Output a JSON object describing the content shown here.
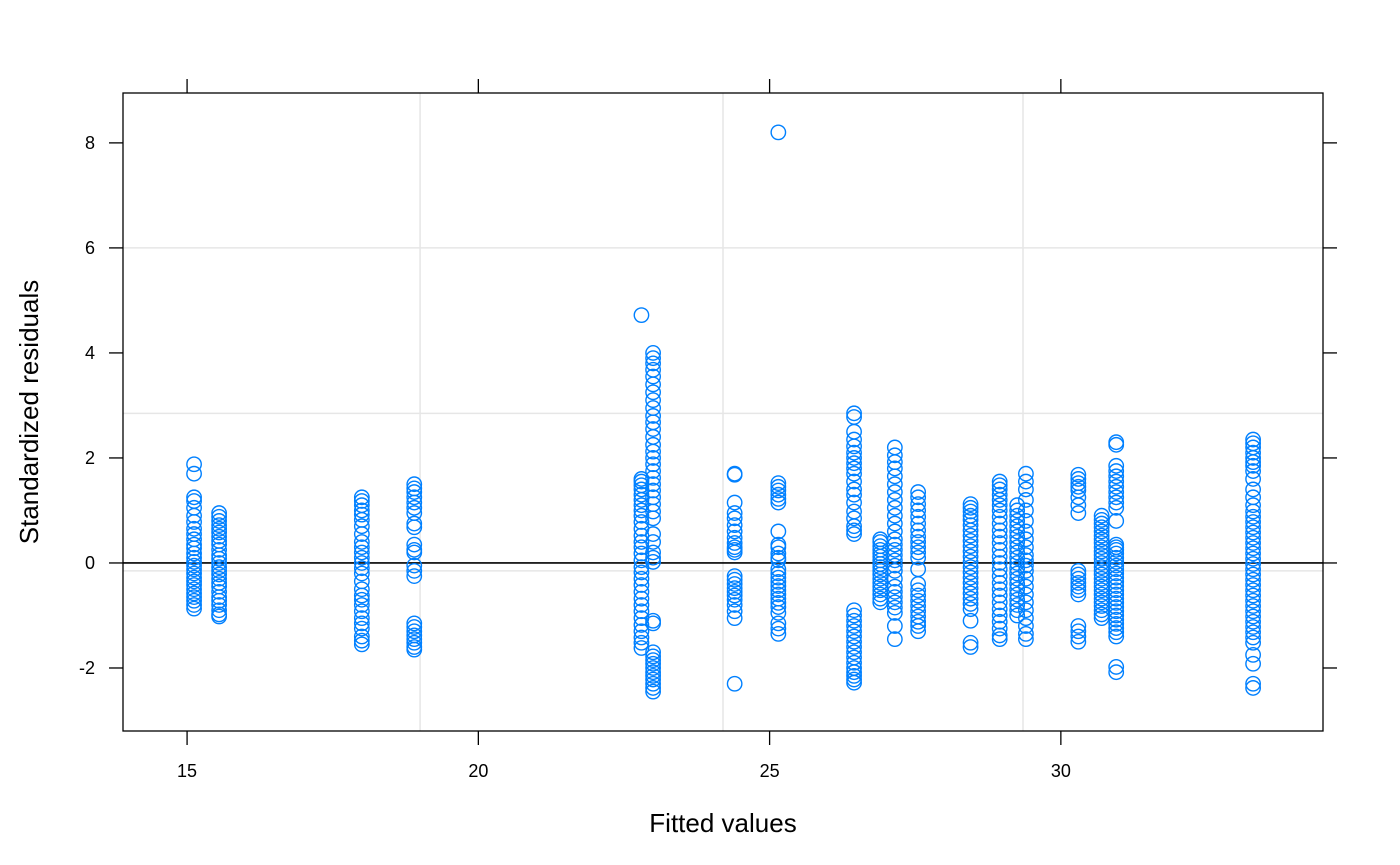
{
  "chart_data": {
    "type": "scatter",
    "title": "",
    "xlabel": "Fitted values",
    "ylabel": "Standardized residuals",
    "xlim": [
      13.9,
      34.5
    ],
    "ylim": [
      -3.2,
      8.95
    ],
    "x_ticks": [
      15,
      20,
      25,
      30
    ],
    "x_tick_labels": [
      "15",
      "20",
      "25",
      "30"
    ],
    "y_ticks": [
      -2,
      0,
      2,
      4,
      6,
      8
    ],
    "y_tick_labels": [
      "-2",
      "0",
      "2",
      "4",
      "6",
      "8"
    ],
    "grid": true,
    "grid_x": [
      19.0,
      24.2,
      29.35
    ],
    "grid_y": [
      -0.15,
      2.85,
      6.0
    ],
    "reference_line_y": 0,
    "marker": "open-circle",
    "point_color": "#0080FF",
    "grid_color": "#e6e6e6",
    "clusters": [
      {
        "x": 15.12,
        "ys": [
          1.88,
          1.7,
          1.25,
          1.18,
          1.05,
          0.9,
          0.78,
          0.65,
          0.55,
          0.45,
          0.35,
          0.28,
          0.18,
          0.1,
          0.02,
          -0.05,
          -0.12,
          -0.2,
          -0.28,
          -0.35,
          -0.42,
          -0.5,
          -0.58,
          -0.65,
          -0.72,
          -0.8,
          -0.87
        ]
      },
      {
        "x": 15.55,
        "ys": [
          0.95,
          0.88,
          0.8,
          0.72,
          0.65,
          0.58,
          0.5,
          0.42,
          0.35,
          0.25,
          0.15,
          0.08,
          0.0,
          -0.08,
          -0.15,
          -0.22,
          -0.3,
          -0.38,
          -0.45,
          -0.55,
          -0.65,
          -0.72,
          -0.8,
          -0.9,
          -0.98,
          -1.02
        ]
      },
      {
        "x": 18.0,
        "ys": [
          1.25,
          1.18,
          1.1,
          1.0,
          0.92,
          0.82,
          0.7,
          0.55,
          0.4,
          0.3,
          0.2,
          0.1,
          0.0,
          -0.1,
          -0.2,
          -0.35,
          -0.5,
          -0.62,
          -0.7,
          -0.8,
          -0.92,
          -1.05,
          -1.15,
          -1.25,
          -1.4,
          -1.48,
          -1.55
        ]
      },
      {
        "x": 18.9,
        "ys": [
          1.5,
          1.42,
          1.35,
          1.25,
          1.15,
          1.05,
          0.95,
          0.75,
          0.68,
          0.35,
          0.25,
          0.2,
          -0.05,
          -0.15,
          -0.25,
          -1.15,
          -1.22,
          -1.3,
          -1.38,
          -1.45,
          -1.52,
          -1.6,
          -1.65
        ]
      },
      {
        "x": 22.8,
        "ys": [
          4.72,
          1.6,
          1.55,
          1.48,
          1.4,
          1.3,
          1.2,
          1.1,
          1.0,
          0.9,
          0.78,
          0.65,
          0.52,
          0.4,
          0.3,
          0.18,
          0.05,
          -0.08,
          -0.18,
          -0.3,
          -0.42,
          -0.55,
          -0.68,
          -0.8,
          -0.92,
          -1.05,
          -1.18,
          -1.3,
          -1.42,
          -1.52,
          -1.62
        ]
      },
      {
        "x": 23.0,
        "ys": [
          4.0,
          3.9,
          3.8,
          3.68,
          3.55,
          3.4,
          3.25,
          3.1,
          2.95,
          2.8,
          2.68,
          2.55,
          2.4,
          2.25,
          2.12,
          2.0,
          1.88,
          1.75,
          1.62,
          1.5,
          1.38,
          1.25,
          1.12,
          0.98,
          0.85,
          0.55,
          0.4,
          0.2,
          0.1,
          0.02,
          -1.1,
          -1.15,
          -1.7,
          -1.78,
          -1.85,
          -1.92,
          -2.0,
          -2.08,
          -2.15,
          -2.22,
          -2.3,
          -2.38,
          -2.45
        ]
      },
      {
        "x": 24.4,
        "ys": [
          1.7,
          1.68,
          1.15,
          0.95,
          0.85,
          0.72,
          0.6,
          0.48,
          0.38,
          0.3,
          0.25,
          0.2,
          -0.25,
          -0.32,
          -0.4,
          -0.48,
          -0.55,
          -0.62,
          -0.7,
          -0.8,
          -0.92,
          -1.05,
          -2.3
        ]
      },
      {
        "x": 25.15,
        "ys": [
          8.2,
          1.52,
          1.45,
          1.38,
          1.3,
          1.22,
          1.15,
          0.6,
          0.35,
          0.3,
          0.18,
          0.1,
          0.05,
          -0.12,
          -0.2,
          -0.28,
          -0.36,
          -0.44,
          -0.52,
          -0.6,
          -0.68,
          -0.76,
          -0.84,
          -0.95,
          -1.15,
          -1.25,
          -1.35
        ]
      },
      {
        "x": 26.45,
        "ys": [
          2.85,
          2.78,
          2.5,
          2.35,
          2.22,
          2.1,
          2.0,
          1.9,
          1.8,
          1.7,
          1.55,
          1.4,
          1.3,
          1.15,
          0.98,
          0.85,
          0.7,
          0.62,
          0.55,
          -0.9,
          -1.0,
          -1.1,
          -1.2,
          -1.3,
          -1.4,
          -1.5,
          -1.6,
          -1.7,
          -1.8,
          -1.9,
          -2.0,
          -2.08,
          -2.15,
          -2.22,
          -2.28
        ]
      },
      {
        "x": 26.9,
        "ys": [
          0.45,
          0.4,
          0.32,
          0.25,
          0.18,
          0.12,
          0.05,
          -0.02,
          -0.08,
          -0.15,
          -0.22,
          -0.3,
          -0.38,
          -0.45,
          -0.52,
          -0.6,
          -0.68,
          -0.75
        ]
      },
      {
        "x": 27.15,
        "ys": [
          2.2,
          2.05,
          1.92,
          1.8,
          1.65,
          1.5,
          1.35,
          1.2,
          1.05,
          0.9,
          0.75,
          0.6,
          0.45,
          0.35,
          0.25,
          0.15,
          0.05,
          -0.05,
          -0.15,
          -0.3,
          -0.45,
          -0.55,
          -0.65,
          -0.75,
          -0.85,
          -0.95,
          -1.2,
          -1.45
        ]
      },
      {
        "x": 27.55,
        "ys": [
          1.35,
          1.25,
          1.12,
          1.0,
          0.88,
          0.75,
          0.62,
          0.5,
          0.4,
          0.3,
          0.2,
          0.1,
          -0.12,
          -0.4,
          -0.52,
          -0.62,
          -0.72,
          -0.82,
          -0.92,
          -1.02,
          -1.12,
          -1.2,
          -1.3
        ]
      },
      {
        "x": 28.45,
        "ys": [
          1.12,
          1.05,
          0.98,
          0.9,
          0.82,
          0.72,
          0.62,
          0.52,
          0.42,
          0.32,
          0.22,
          0.12,
          0.02,
          -0.08,
          -0.18,
          -0.28,
          -0.38,
          -0.48,
          -0.58,
          -0.68,
          -0.78,
          -0.88,
          -1.1,
          -1.52,
          -1.6
        ]
      },
      {
        "x": 28.95,
        "ys": [
          1.55,
          1.48,
          1.4,
          1.3,
          1.2,
          1.1,
          1.0,
          0.88,
          0.75,
          0.62,
          0.5,
          0.38,
          0.25,
          0.12,
          0.0,
          -0.12,
          -0.25,
          -0.38,
          -0.5,
          -0.62,
          -0.75,
          -0.88,
          -1.0,
          -1.12,
          -1.25,
          -1.38,
          -1.45
        ]
      },
      {
        "x": 29.25,
        "ys": [
          1.1,
          1.0,
          0.9,
          0.8,
          0.7,
          0.6,
          0.5,
          0.4,
          0.3,
          0.2,
          0.1,
          0.0,
          -0.1,
          -0.2,
          -0.3,
          -0.4,
          -0.5,
          -0.6,
          -0.7,
          -0.8,
          -0.9,
          -1.0
        ]
      },
      {
        "x": 29.4,
        "ys": [
          1.7,
          1.55,
          1.4,
          1.2,
          1.0,
          0.8,
          0.6,
          0.45,
          0.3,
          0.15,
          0.05,
          -0.05,
          -0.15,
          -0.3,
          -0.45,
          -0.6,
          -0.75,
          -0.9,
          -1.05,
          -1.2,
          -1.35,
          -1.45
        ]
      },
      {
        "x": 30.3,
        "ys": [
          1.68,
          1.6,
          1.52,
          1.45,
          1.38,
          1.25,
          1.1,
          0.95,
          -0.15,
          -0.22,
          -0.3,
          -0.38,
          -0.45,
          -0.52,
          -0.6,
          -1.2,
          -1.3,
          -1.4,
          -1.5
        ]
      },
      {
        "x": 30.7,
        "ys": [
          0.9,
          0.82,
          0.75,
          0.68,
          0.6,
          0.52,
          0.45,
          0.38,
          0.3,
          0.22,
          0.15,
          0.08,
          0.0,
          -0.08,
          -0.15,
          -0.22,
          -0.3,
          -0.38,
          -0.45,
          -0.52,
          -0.6,
          -0.68,
          -0.75,
          -0.82,
          -0.9,
          -0.98,
          -1.05
        ]
      },
      {
        "x": 30.95,
        "ys": [
          2.3,
          2.25,
          1.85,
          1.75,
          1.65,
          1.55,
          1.45,
          1.35,
          1.25,
          1.15,
          1.05,
          0.8,
          0.35,
          0.3,
          0.25,
          0.18,
          0.1,
          0.02,
          -0.05,
          -0.12,
          -0.2,
          -0.28,
          -0.36,
          -0.44,
          -0.52,
          -0.6,
          -0.68,
          -0.76,
          -0.84,
          -0.92,
          -1.0,
          -1.08,
          -1.16,
          -1.24,
          -1.32,
          -1.4,
          -1.98,
          -2.08
        ]
      },
      {
        "x": 33.3,
        "ys": [
          2.35,
          2.28,
          2.2,
          2.1,
          2.0,
          1.92,
          1.85,
          1.75,
          1.6,
          1.4,
          1.25,
          1.1,
          0.98,
          0.88,
          0.78,
          0.68,
          0.58,
          0.48,
          0.38,
          0.28,
          0.18,
          0.08,
          -0.02,
          -0.12,
          -0.22,
          -0.32,
          -0.42,
          -0.52,
          -0.62,
          -0.72,
          -0.82,
          -0.92,
          -1.02,
          -1.12,
          -1.22,
          -1.32,
          -1.42,
          -1.52,
          -1.75,
          -1.92,
          -2.3,
          -2.38
        ]
      }
    ]
  }
}
